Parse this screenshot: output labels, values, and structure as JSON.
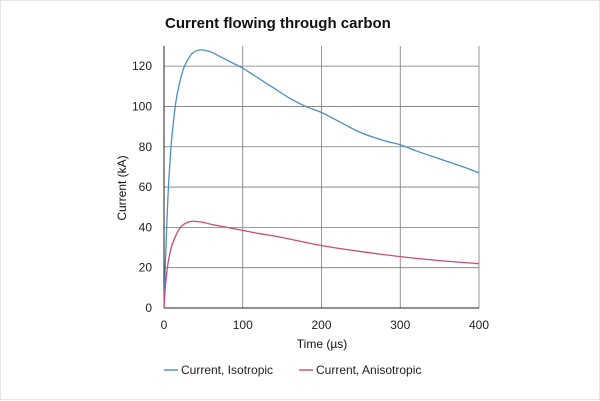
{
  "chart_data": {
    "type": "line",
    "title": "Current flowing through carbon",
    "xlabel": "Time (µs)",
    "ylabel": "Current (kA)",
    "xlim": [
      0,
      400
    ],
    "ylim": [
      0,
      130
    ],
    "x_ticks": [
      0,
      100,
      200,
      300,
      400
    ],
    "y_ticks": [
      0,
      20,
      40,
      60,
      80,
      100,
      120
    ],
    "grid": true,
    "legend_position": "bottom",
    "series": [
      {
        "name": "Current, Isotropic",
        "color": "#4a8fc7",
        "x": [
          0,
          2,
          5,
          8,
          10,
          15,
          20,
          25,
          30,
          35,
          40,
          45,
          50,
          55,
          60,
          70,
          80,
          90,
          100,
          120,
          140,
          160,
          180,
          200,
          220,
          250,
          280,
          300,
          320,
          350,
          380,
          400
        ],
        "y": [
          0,
          25,
          55,
          75,
          85,
          102,
          112,
          119,
          123,
          126,
          127.5,
          128,
          128,
          127.5,
          127,
          125,
          123,
          121,
          119,
          114,
          109,
          104,
          100,
          97,
          93,
          87,
          83,
          81,
          78,
          74,
          70,
          67
        ]
      },
      {
        "name": "Current, Anisotropic",
        "color": "#cc4a78",
        "x": [
          0,
          2,
          5,
          8,
          10,
          15,
          20,
          25,
          30,
          35,
          40,
          50,
          60,
          80,
          100,
          120,
          150,
          200,
          250,
          300,
          350,
          400
        ],
        "y": [
          0,
          12,
          22,
          28,
          31,
          36,
          39.5,
          41.5,
          42.5,
          43,
          43,
          42.5,
          41.5,
          40,
          38.5,
          37,
          35,
          31,
          28,
          25.5,
          23.5,
          22
        ]
      }
    ]
  }
}
